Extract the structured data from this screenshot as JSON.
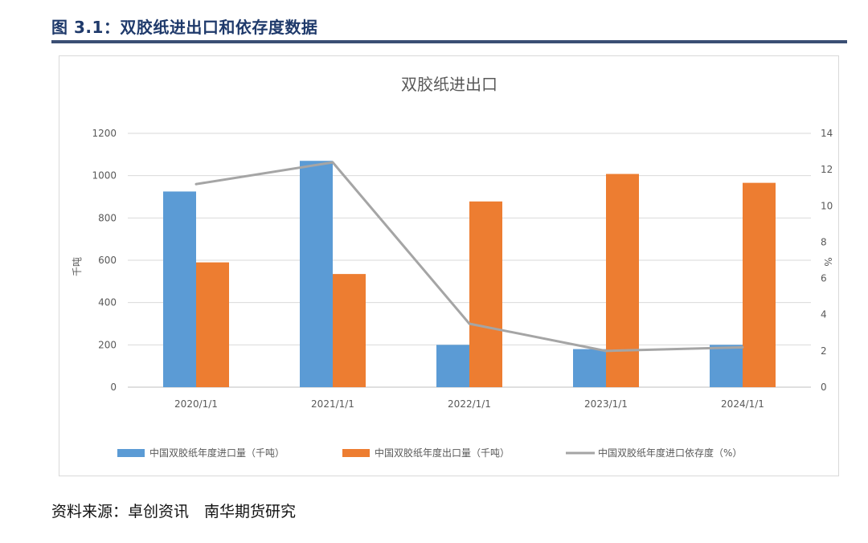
{
  "figure": {
    "title": "图 3.1：双胶纸进出口和依存度数据",
    "source": "资料来源：卓创资讯　南华期货研究"
  },
  "colors": {
    "import_bar": "#5b9bd5",
    "export_bar": "#ed7d31",
    "dependency_line": "#a5a5a5",
    "title_rule": "#3b4f74",
    "title_text": "#1f3a6b"
  },
  "chart_data": {
    "type": "bar",
    "title": "双胶纸进出口",
    "categories": [
      "2020/1/1",
      "2021/1/1",
      "2022/1/1",
      "2023/1/1",
      "2024/1/1"
    ],
    "ylabel": "千吨",
    "y2label": "%",
    "ylim": [
      0,
      1200
    ],
    "y2lim": [
      0,
      14
    ],
    "yticks": [
      "0",
      "200",
      "400",
      "600",
      "800",
      "1000",
      "1200"
    ],
    "y2ticks": [
      "0",
      "2",
      "4",
      "6",
      "8",
      "10",
      "12",
      "14"
    ],
    "grid": true,
    "legend_position": "bottom",
    "series": [
      {
        "name": "中国双胶纸年度进口量（千吨）",
        "type": "bar",
        "axis": "left",
        "values": [
          925,
          1070,
          200,
          180,
          200
        ]
      },
      {
        "name": "中国双胶纸年度出口量（千吨）",
        "type": "bar",
        "axis": "left",
        "values": [
          590,
          535,
          878,
          1008,
          966
        ]
      },
      {
        "name": "中国双胶纸年度进口依存度（%）",
        "type": "line",
        "axis": "right",
        "values": [
          11.2,
          12.4,
          3.5,
          2.0,
          2.2
        ]
      }
    ]
  }
}
